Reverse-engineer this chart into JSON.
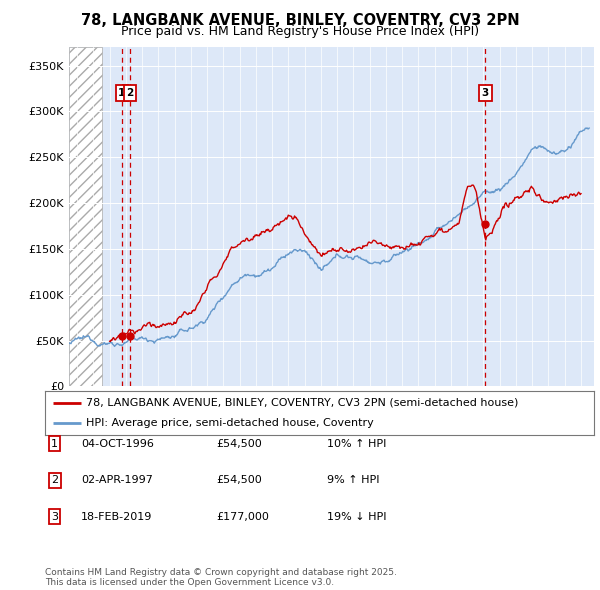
{
  "title": "78, LANGBANK AVENUE, BINLEY, COVENTRY, CV3 2PN",
  "subtitle": "Price paid vs. HM Land Registry's House Price Index (HPI)",
  "ylabel_ticks": [
    "£0",
    "£50K",
    "£100K",
    "£150K",
    "£200K",
    "£250K",
    "£300K",
    "£350K"
  ],
  "ytick_values": [
    0,
    50000,
    100000,
    150000,
    200000,
    250000,
    300000,
    350000
  ],
  "ylim": [
    0,
    370000
  ],
  "xlim_start": 1993.5,
  "xlim_end": 2025.8,
  "hatch_end": 1995.5,
  "transactions": [
    {
      "date": "04-OCT-1996",
      "price": 54500,
      "year": 1996.75,
      "label": "1",
      "hpi_pct": "10% ↑ HPI"
    },
    {
      "date": "02-APR-1997",
      "price": 54500,
      "year": 1997.25,
      "label": "2",
      "hpi_pct": "9% ↑ HPI"
    },
    {
      "date": "18-FEB-2019",
      "price": 177000,
      "year": 2019.12,
      "label": "3",
      "hpi_pct": "19% ↓ HPI"
    }
  ],
  "legend_line1": "78, LANGBANK AVENUE, BINLEY, COVENTRY, CV3 2PN (semi-detached house)",
  "legend_line2": "HPI: Average price, semi-detached house, Coventry",
  "footer": "Contains HM Land Registry data © Crown copyright and database right 2025.\nThis data is licensed under the Open Government Licence v3.0.",
  "red_color": "#cc0000",
  "blue_color": "#6699cc",
  "background_color": "#dde8f8",
  "hpi_base": [
    [
      1993.5,
      47000
    ],
    [
      1994,
      48000
    ],
    [
      1994.5,
      47500
    ],
    [
      1995,
      47000
    ],
    [
      1995.5,
      47500
    ],
    [
      1996,
      48000
    ],
    [
      1996.5,
      49000
    ],
    [
      1997,
      50000
    ],
    [
      1997.5,
      50500
    ],
    [
      1998,
      51000
    ],
    [
      1998.5,
      52000
    ],
    [
      1999,
      53000
    ],
    [
      1999.5,
      55000
    ],
    [
      2000,
      57000
    ],
    [
      2000.5,
      60000
    ],
    [
      2001,
      63000
    ],
    [
      2001.5,
      68000
    ],
    [
      2002,
      76000
    ],
    [
      2002.5,
      88000
    ],
    [
      2003,
      102000
    ],
    [
      2003.5,
      115000
    ],
    [
      2004,
      125000
    ],
    [
      2004.5,
      132000
    ],
    [
      2005,
      135000
    ],
    [
      2005.5,
      138000
    ],
    [
      2006,
      142000
    ],
    [
      2006.5,
      148000
    ],
    [
      2007,
      155000
    ],
    [
      2007.5,
      158000
    ],
    [
      2008,
      155000
    ],
    [
      2008.5,
      148000
    ],
    [
      2009,
      135000
    ],
    [
      2009.5,
      138000
    ],
    [
      2010,
      143000
    ],
    [
      2010.5,
      145000
    ],
    [
      2011,
      144000
    ],
    [
      2011.5,
      143000
    ],
    [
      2012,
      141000
    ],
    [
      2012.5,
      142000
    ],
    [
      2013,
      144000
    ],
    [
      2013.5,
      147000
    ],
    [
      2014,
      152000
    ],
    [
      2014.5,
      157000
    ],
    [
      2015,
      162000
    ],
    [
      2015.5,
      167000
    ],
    [
      2016,
      172000
    ],
    [
      2016.5,
      178000
    ],
    [
      2017,
      185000
    ],
    [
      2017.5,
      192000
    ],
    [
      2018,
      200000
    ],
    [
      2018.5,
      208000
    ],
    [
      2019,
      215000
    ],
    [
      2019.5,
      218000
    ],
    [
      2020,
      220000
    ],
    [
      2020.5,
      228000
    ],
    [
      2021,
      238000
    ],
    [
      2021.5,
      252000
    ],
    [
      2022,
      265000
    ],
    [
      2022.5,
      268000
    ],
    [
      2023,
      262000
    ],
    [
      2023.5,
      260000
    ],
    [
      2024,
      262000
    ],
    [
      2024.5,
      268000
    ],
    [
      2025,
      278000
    ],
    [
      2025.5,
      283000
    ]
  ],
  "pp_base": [
    [
      1996.0,
      50000
    ],
    [
      1996.5,
      52000
    ],
    [
      1996.75,
      54500
    ],
    [
      1997.0,
      54500
    ],
    [
      1997.25,
      54500
    ],
    [
      1997.5,
      54000
    ],
    [
      1998,
      55000
    ],
    [
      1998.5,
      57000
    ],
    [
      1999,
      59000
    ],
    [
      1999.5,
      62000
    ],
    [
      2000,
      66000
    ],
    [
      2000.5,
      70000
    ],
    [
      2001,
      75000
    ],
    [
      2001.5,
      83000
    ],
    [
      2002,
      95000
    ],
    [
      2002.5,
      110000
    ],
    [
      2003,
      125000
    ],
    [
      2003.5,
      138000
    ],
    [
      2004,
      150000
    ],
    [
      2004.5,
      158000
    ],
    [
      2005,
      162000
    ],
    [
      2005.5,
      165000
    ],
    [
      2006,
      168000
    ],
    [
      2006.5,
      172000
    ],
    [
      2007,
      178000
    ],
    [
      2007.5,
      175000
    ],
    [
      2008,
      168000
    ],
    [
      2008.5,
      158000
    ],
    [
      2009,
      148000
    ],
    [
      2009.5,
      152000
    ],
    [
      2010,
      156000
    ],
    [
      2010.5,
      153000
    ],
    [
      2011,
      151000
    ],
    [
      2011.5,
      150000
    ],
    [
      2012,
      149000
    ],
    [
      2012.5,
      151000
    ],
    [
      2013,
      154000
    ],
    [
      2013.5,
      157000
    ],
    [
      2014,
      162000
    ],
    [
      2014.5,
      167000
    ],
    [
      2015,
      173000
    ],
    [
      2015.5,
      179000
    ],
    [
      2016,
      185000
    ],
    [
      2016.5,
      192000
    ],
    [
      2017,
      199000
    ],
    [
      2017.5,
      207000
    ],
    [
      2018,
      240000
    ],
    [
      2018.5,
      235000
    ],
    [
      2019.12,
      177000
    ],
    [
      2019.5,
      182000
    ],
    [
      2020,
      190000
    ],
    [
      2020.5,
      198000
    ],
    [
      2021,
      208000
    ],
    [
      2021.5,
      215000
    ],
    [
      2022,
      220000
    ],
    [
      2022.5,
      210000
    ],
    [
      2023,
      205000
    ],
    [
      2023.5,
      208000
    ],
    [
      2024,
      212000
    ],
    [
      2024.5,
      218000
    ],
    [
      2025,
      222000
    ]
  ]
}
